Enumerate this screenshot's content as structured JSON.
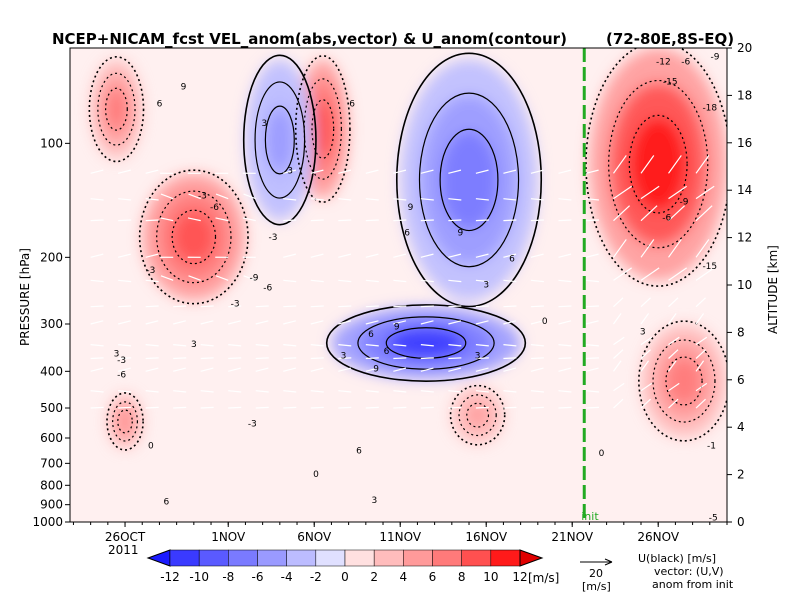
{
  "chart_data": {
    "type": "heatmap",
    "title": "NCEP+NICAM_fcst VEL_anom(abs,vector) & U_anom(contour)",
    "region": "(72-80E,8S-EQ)",
    "ylabel": "PRESSURE [hPa]",
    "y2label": "ALTITUDE [km]",
    "xaxis": {
      "ticks": [
        {
          "label": "26OCT",
          "day": 0
        },
        {
          "label": "1NOV",
          "day": 6
        },
        {
          "label": "6NOV",
          "day": 11
        },
        {
          "label": "11NOV",
          "day": 16
        },
        {
          "label": "16NOV",
          "day": 21
        },
        {
          "label": "21NOV",
          "day": 26
        },
        {
          "label": "26NOV",
          "day": 31
        }
      ],
      "year_label": "2011",
      "xlim_days": [
        -3.2,
        35.0
      ]
    },
    "pressure_ticks": [
      "100",
      "200",
      "300",
      "400",
      "500",
      "600",
      "700",
      "800",
      "900",
      "1000"
    ],
    "pressure_values": [
      100,
      200,
      300,
      400,
      500,
      600,
      700,
      800,
      900,
      1000
    ],
    "pressure_top": 56,
    "altitude_ticks": [
      "0",
      "2",
      "4",
      "6",
      "8",
      "10",
      "12",
      "14",
      "16",
      "18",
      "20"
    ],
    "forecast_init_label": "init",
    "forecast_init_day": 26.7,
    "colorbar": {
      "levels": [
        -12,
        -10,
        -8,
        -6,
        -4,
        -2,
        0,
        2,
        4,
        6,
        8,
        10,
        12
      ],
      "tick_labels": [
        "-12",
        "-10",
        "-8",
        "-6",
        "-4",
        "-2",
        "0",
        "2",
        "4",
        "6",
        "8",
        "10",
        "12"
      ],
      "units": "[m/s]",
      "colors": [
        "#1b1bff",
        "#3a3aff",
        "#5a5aff",
        "#7a7aff",
        "#9a9aff",
        "#bcbcff",
        "#e0e0ff",
        "#ffe0e0",
        "#ffbcbc",
        "#ff9a9a",
        "#ff7a7a",
        "#ff5050",
        "#ff1a1a",
        "#e00000"
      ]
    },
    "anomaly_features": [
      {
        "sign": "positive",
        "day_start": -2,
        "day_end": 1,
        "p_top": 60,
        "p_bottom": 110,
        "peak": 8
      },
      {
        "sign": "positive",
        "day_start": 1,
        "day_end": 7,
        "p_top": 120,
        "p_bottom": 260,
        "peak": 10
      },
      {
        "sign": "positive",
        "day_start": 10,
        "day_end": 13,
        "p_top": 60,
        "p_bottom": 140,
        "peak": 10
      },
      {
        "sign": "negative",
        "day_start": 12,
        "day_end": 23,
        "p_top": 270,
        "p_bottom": 420,
        "peak": -10
      },
      {
        "sign": "negative",
        "day_start": 16,
        "day_end": 24,
        "p_top": 60,
        "p_bottom": 260,
        "peak": -7
      },
      {
        "sign": "negative",
        "day_start": 7,
        "day_end": 11,
        "p_top": 60,
        "p_bottom": 160,
        "peak": -5
      },
      {
        "sign": "positive",
        "day_start": 27,
        "day_end": 35,
        "p_top": 56,
        "p_bottom": 230,
        "peak": 12
      },
      {
        "sign": "positive",
        "day_start": 30,
        "day_end": 35,
        "p_top": 300,
        "p_bottom": 600,
        "peak": 8
      },
      {
        "sign": "positive",
        "day_start": -1,
        "day_end": 1,
        "p_top": 460,
        "p_bottom": 640,
        "peak": 6
      },
      {
        "sign": "positive",
        "day_start": 19,
        "day_end": 22,
        "p_top": 440,
        "p_bottom": 620,
        "peak": 5
      }
    ],
    "contour_labels": [
      {
        "text": "6",
        "day": 2,
        "p": 80
      },
      {
        "text": "9",
        "day": 3.4,
        "p": 72
      },
      {
        "text": "3",
        "day": 9.6,
        "p": 120
      },
      {
        "text": "-3",
        "day": 4.5,
        "p": 140
      },
      {
        "text": "-6",
        "day": 5.2,
        "p": 150
      },
      {
        "text": "-3",
        "day": 8.6,
        "p": 180
      },
      {
        "text": "-9",
        "day": 7.5,
        "p": 230
      },
      {
        "text": "-6",
        "day": 8.3,
        "p": 245
      },
      {
        "text": "-3",
        "day": 6.4,
        "p": 270
      },
      {
        "text": "-3",
        "day": 1.5,
        "p": 220
      },
      {
        "text": "6",
        "day": 13.2,
        "p": 80
      },
      {
        "text": "3",
        "day": 8.1,
        "p": 90
      },
      {
        "text": "9",
        "day": 16.6,
        "p": 150
      },
      {
        "text": "6",
        "day": 16.4,
        "p": 175
      },
      {
        "text": "9",
        "day": 19.5,
        "p": 175
      },
      {
        "text": "6",
        "day": 22.5,
        "p": 205
      },
      {
        "text": "3",
        "day": 21,
        "p": 240
      },
      {
        "text": "3",
        "day": 4,
        "p": 345
      },
      {
        "text": "3",
        "day": -0.5,
        "p": 365
      },
      {
        "text": "-3",
        "day": -0.2,
        "p": 380
      },
      {
        "text": "-6",
        "day": -0.2,
        "p": 415
      },
      {
        "text": "6",
        "day": 14.3,
        "p": 325
      },
      {
        "text": "9",
        "day": 15.8,
        "p": 310
      },
      {
        "text": "6",
        "day": 15.2,
        "p": 360
      },
      {
        "text": "9",
        "day": 14.6,
        "p": 400
      },
      {
        "text": "3",
        "day": 12.7,
        "p": 370
      },
      {
        "text": "3",
        "day": 20.5,
        "p": 370
      },
      {
        "text": "6",
        "day": 13.6,
        "p": 660
      },
      {
        "text": "0",
        "day": 11.1,
        "p": 760
      },
      {
        "text": "3",
        "day": 14.5,
        "p": 890
      },
      {
        "text": "6",
        "day": 2.4,
        "p": 900
      },
      {
        "text": "-3",
        "day": 7.4,
        "p": 560
      },
      {
        "text": "0",
        "day": 1.5,
        "p": 640
      },
      {
        "text": "0",
        "day": 27.7,
        "p": 670
      },
      {
        "text": "3",
        "day": 30.1,
        "p": 320
      },
      {
        "text": "-9",
        "day": 32.5,
        "p": 145
      },
      {
        "text": "-6",
        "day": 31.5,
        "p": 160
      },
      {
        "text": "-12",
        "day": 31.3,
        "p": 62
      },
      {
        "text": "-15",
        "day": 31.7,
        "p": 70
      },
      {
        "text": "-18",
        "day": 34,
        "p": 82
      },
      {
        "text": "-9",
        "day": 34.3,
        "p": 60
      },
      {
        "text": "-6",
        "day": 32.6,
        "p": 62
      },
      {
        "text": "-15",
        "day": 34,
        "p": 215
      },
      {
        "text": "-1",
        "day": 34.1,
        "p": 640
      },
      {
        "text": "-5",
        "day": 34.2,
        "p": 990
      },
      {
        "text": "0",
        "day": 24.4,
        "p": 300
      }
    ],
    "vector_legend": {
      "value": "20",
      "units": "[m/s]"
    },
    "legend_text": [
      "U(black) [m/s]",
      "vector: (U,V)",
      "anom from init"
    ]
  }
}
